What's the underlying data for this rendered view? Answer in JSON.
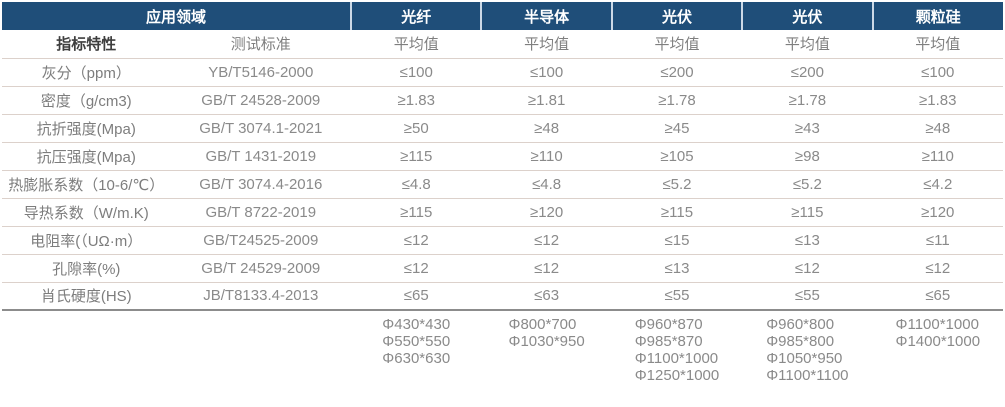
{
  "table": {
    "header": {
      "application_label": "应用领域",
      "columns": [
        "光纤",
        "半导体",
        "光伏",
        "光伏",
        "颗粒硅"
      ],
      "property_label": "指标特性",
      "standard_label": "测试标准",
      "avg_label": "平均值"
    },
    "rows": [
      {
        "property": "灰分（ppm）",
        "standard": "YB/T5146-2000",
        "values": [
          "≤100",
          "≤100",
          "≤200",
          "≤200",
          "≤100"
        ]
      },
      {
        "property": "密度（g/cm3)",
        "standard": "GB/T 24528-2009",
        "values": [
          "≥1.83",
          "≥1.81",
          "≥1.78",
          "≥1.78",
          "≥1.83"
        ]
      },
      {
        "property": "抗折强度(Mpa)",
        "standard": "GB/T 3074.1-2021",
        "values": [
          "≥50",
          "≥48",
          "≥45",
          "≥43",
          "≥48"
        ]
      },
      {
        "property": "抗压强度(Mpa)",
        "standard": "GB/T 1431-2019",
        "values": [
          "≥115",
          "≥110",
          "≥105",
          "≥98",
          "≥110"
        ]
      },
      {
        "property": "热膨胀系数（10-6/℃）",
        "standard": "GB/T 3074.4-2016",
        "values": [
          "≤4.8",
          "≤4.8",
          "≤5.2",
          "≤5.2",
          "≤4.2"
        ]
      },
      {
        "property": "导热系数（W/m.K)",
        "standard": "GB/T 8722-2019",
        "values": [
          "≥115",
          "≥120",
          "≥115",
          "≥115",
          "≥120"
        ]
      },
      {
        "property": "电阻率(（UΩ·m）",
        "standard": "GB/T24525-2009",
        "values": [
          "≤12",
          "≤12",
          "≤15",
          "≤13",
          "≤11"
        ]
      },
      {
        "property": "孔隙率(%)",
        "standard": "GB/T 24529-2009",
        "values": [
          "≤12",
          "≤12",
          "≤13",
          "≤12",
          "≤12"
        ]
      },
      {
        "property": "肖氏硬度(HS)",
        "standard": "JB/T8133.4-2013",
        "values": [
          "≤65",
          "≤63",
          "≤55",
          "≤55",
          "≤65"
        ]
      }
    ],
    "sizes": [
      [
        "Φ430*430",
        "Φ550*550",
        "Φ630*630"
      ],
      [
        "Φ800*700",
        "Φ1030*950"
      ],
      [
        "Φ960*870",
        "Φ985*870",
        "Φ1100*1000",
        "Φ1250*1000"
      ],
      [
        "Φ960*800",
        "Φ985*800",
        "Φ1050*950",
        "Φ1100*1100"
      ],
      [
        "Φ1100*1000",
        "Φ1400*1000"
      ]
    ]
  },
  "colors": {
    "header_bg": "#1f4e79",
    "header_text": "#ffffff",
    "header_divider": "#ccd9e7",
    "row_line": "#dcd1cb",
    "section_line": "#8c8c8c",
    "body_text": "#8a8a8a",
    "property_header_text": "#3f3f3f"
  }
}
